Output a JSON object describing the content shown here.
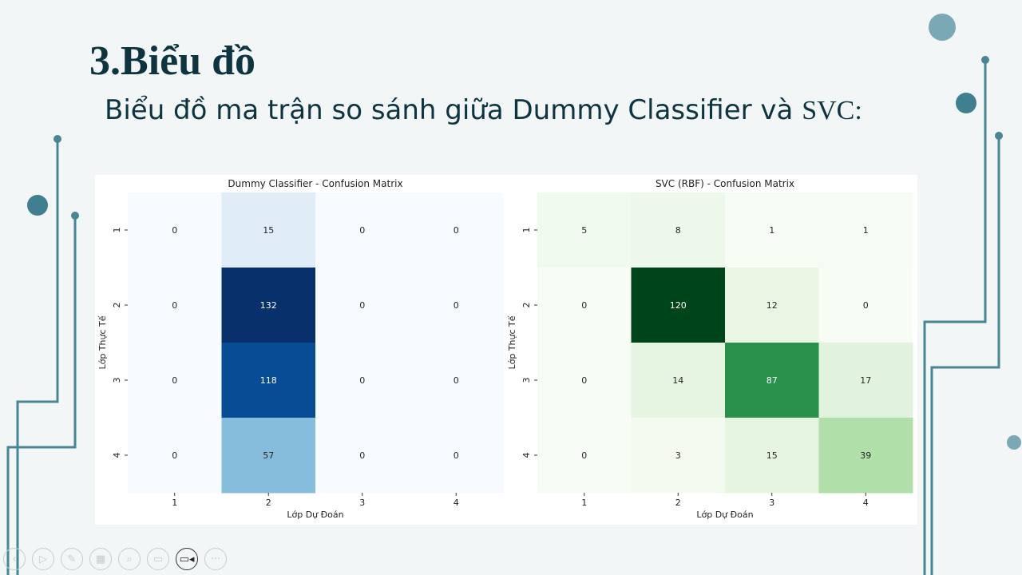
{
  "slide": {
    "title": "3.Biểu đồ",
    "subtitle_sans": "Biểu đồ ma trận so sánh giữa Dummy Classifier và ",
    "subtitle_serif": "SVC:"
  },
  "theme": {
    "background": "#f2f6f7",
    "line": "#4a8595",
    "dot_dark": "#3f7f8f",
    "dot_light": "#7aa8b4",
    "title_color": "#0e3440"
  },
  "toolbar": [
    {
      "name": "previous-slide-icon",
      "glyph": "‹"
    },
    {
      "name": "next-slide-icon",
      "glyph": "▷"
    },
    {
      "name": "pen-icon",
      "glyph": "✎"
    },
    {
      "name": "slides-grid-icon",
      "glyph": "▦"
    },
    {
      "name": "zoom-icon",
      "glyph": "⌕"
    },
    {
      "name": "subtitles-icon",
      "glyph": "▭"
    },
    {
      "name": "camera-icon",
      "glyph": "▭◂"
    },
    {
      "name": "more-options-icon",
      "glyph": "···"
    }
  ],
  "chart_data": [
    {
      "type": "heatmap",
      "title": "Dummy Classifier - Confusion Matrix",
      "xlabel": "Lớp Dự Đoán",
      "ylabel": "Lớp Thực Tế",
      "x_categories": [
        "1",
        "2",
        "3",
        "4"
      ],
      "y_categories": [
        "1",
        "2",
        "3",
        "4"
      ],
      "colormap": "Blues",
      "values": [
        [
          0,
          15,
          0,
          0
        ],
        [
          0,
          132,
          0,
          0
        ],
        [
          0,
          118,
          0,
          0
        ],
        [
          0,
          57,
          0,
          0
        ]
      ]
    },
    {
      "type": "heatmap",
      "title": "SVC (RBF) - Confusion Matrix",
      "xlabel": "Lớp Dự Đoán",
      "ylabel": "Lớp Thực Tế",
      "x_categories": [
        "1",
        "2",
        "3",
        "4"
      ],
      "y_categories": [
        "1",
        "2",
        "3",
        "4"
      ],
      "colormap": "Greens",
      "values": [
        [
          5,
          8,
          1,
          1
        ],
        [
          0,
          120,
          12,
          0
        ],
        [
          0,
          14,
          87,
          17
        ],
        [
          0,
          3,
          15,
          39
        ]
      ]
    }
  ]
}
